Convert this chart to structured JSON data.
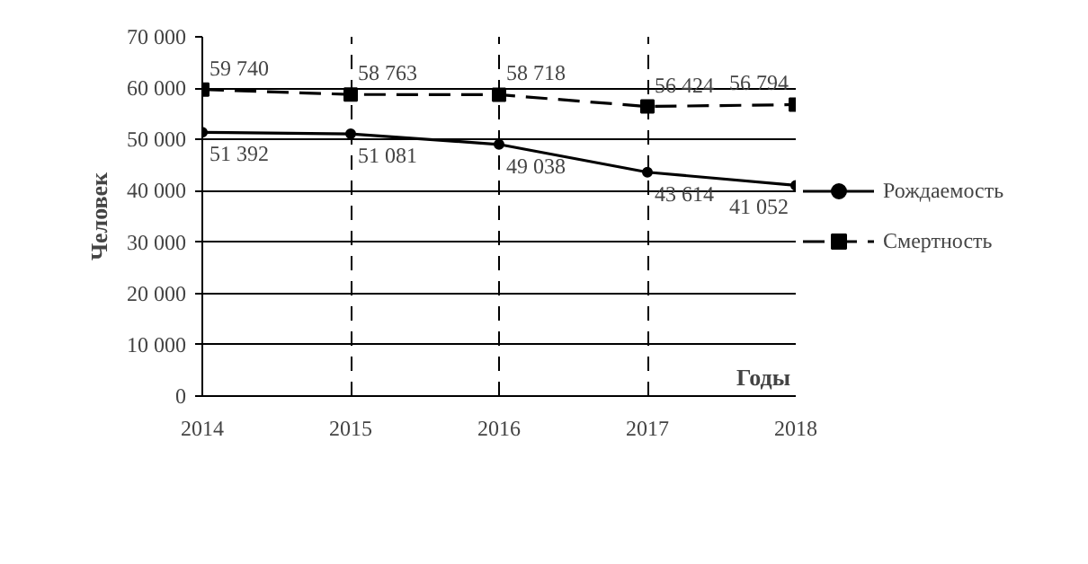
{
  "chart_data": {
    "type": "line",
    "xlabel": "Годы",
    "ylabel": "Человек",
    "x": [
      2014,
      2015,
      2016,
      2017,
      2018
    ],
    "series": [
      {
        "name": "Рождаемость",
        "color": "#000000",
        "values": [
          51392,
          51081,
          49038,
          43614,
          41052
        ],
        "marker": "circle",
        "line_style": "solid"
      },
      {
        "name": "Смертность",
        "color": "#000000",
        "values": [
          59740,
          58763,
          58718,
          56424,
          56794
        ],
        "marker": "square",
        "line_style": "dashed"
      }
    ],
    "xlim": [
      2014,
      2018
    ],
    "xticks": [
      2014,
      2015,
      2016,
      2017,
      2018
    ],
    "ylim": [
      0,
      70000
    ],
    "yticks": [
      {
        "value": 0,
        "label": "0"
      },
      {
        "value": 10000,
        "label": "10 000"
      },
      {
        "value": 20000,
        "label": "20 000"
      },
      {
        "value": 30000,
        "label": "30 000"
      },
      {
        "value": 40000,
        "label": "40 000"
      },
      {
        "value": 50000,
        "label": "50 000"
      },
      {
        "value": 60000,
        "label": "60 000"
      },
      {
        "value": 70000,
        "label": "70 000"
      }
    ],
    "grid": true,
    "legend": "right",
    "data_labels": true
  }
}
